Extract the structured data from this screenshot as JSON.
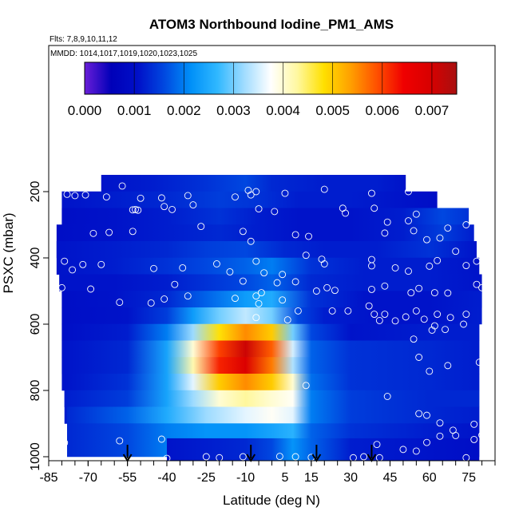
{
  "chart_data": {
    "type": "heatmap",
    "title": "ATOM3 Northbound Iodine_PM1_AMS",
    "flights_note": "Flts: 7,8,9,10,11,12",
    "mmdd_note": "MMDD: 1014,1017,1019,1020,1023,1025",
    "xlabel": "Latitude (deg N)",
    "ylabel": "PSXC (mbar)",
    "xlim": [
      -85,
      85
    ],
    "ylim": [
      1000,
      100
    ],
    "x_ticks": [
      -85,
      -70,
      -55,
      -40,
      -25,
      -10,
      5,
      15,
      30,
      45,
      60,
      75
    ],
    "y_ticks": [
      200,
      400,
      600,
      800,
      1000
    ],
    "colorbar": {
      "min": 0.0,
      "max": 0.0075,
      "ticks": [
        "0.000",
        "0.001",
        "0.002",
        "0.003",
        "0.004",
        "0.005",
        "0.006",
        "0.007"
      ],
      "tick_values": [
        0.0,
        0.001,
        0.002,
        0.003,
        0.004,
        0.005,
        0.006,
        0.007
      ],
      "colors": [
        "#6a1ed8",
        "#0000b8",
        "#0010c8",
        "#0048e0",
        "#0090f8",
        "#30b8ff",
        "#a0dcff",
        "#ffffff",
        "#fff8a0",
        "#ffe000",
        "#ffa000",
        "#ff5000",
        "#f00000",
        "#d80000",
        "#a81010"
      ]
    },
    "flight_markers_lat": [
      -55,
      -8,
      17,
      38
    ],
    "layers": [
      {
        "p": 200,
        "lat_min": -65,
        "lat_max": 51,
        "lat": [
          -65,
          -45,
          -25,
          -10,
          0,
          20,
          40,
          51
        ],
        "v": [
          0.0011,
          0.0012,
          0.0014,
          0.0016,
          0.0013,
          0.0012,
          0.0012,
          0.0011
        ]
      },
      {
        "p": 250,
        "lat_min": -80,
        "lat_max": 63,
        "lat": [
          -80,
          -60,
          -40,
          -20,
          -5,
          10,
          30,
          50,
          63
        ],
        "v": [
          0.0011,
          0.0012,
          0.0013,
          0.0015,
          0.0014,
          0.0012,
          0.0012,
          0.0011,
          0.001
        ]
      },
      {
        "p": 300,
        "lat_min": -80,
        "lat_max": 75,
        "lat": [
          -80,
          -60,
          -40,
          -20,
          -5,
          10,
          30,
          50,
          65,
          75
        ],
        "v": [
          0.001,
          0.0011,
          0.0012,
          0.0014,
          0.0012,
          0.0011,
          0.0011,
          0.0012,
          0.0016,
          0.0014
        ]
      },
      {
        "p": 350,
        "lat_min": -82,
        "lat_max": 77,
        "lat": [
          -82,
          -60,
          -40,
          -20,
          -5,
          10,
          30,
          50,
          65,
          77
        ],
        "v": [
          0.001,
          0.0011,
          0.0012,
          0.0013,
          0.0012,
          0.0011,
          0.0011,
          0.0012,
          0.0015,
          0.0012
        ]
      },
      {
        "p": 400,
        "lat_min": -82,
        "lat_max": 78,
        "lat": [
          -82,
          -60,
          -40,
          -25,
          -10,
          5,
          20,
          40,
          60,
          78
        ],
        "v": [
          0.0011,
          0.0012,
          0.0013,
          0.0015,
          0.0016,
          0.0013,
          0.0012,
          0.0012,
          0.0014,
          0.0011
        ]
      },
      {
        "p": 450,
        "lat_min": -81,
        "lat_max": 79,
        "lat": [
          -81,
          -60,
          -40,
          -25,
          -10,
          0,
          15,
          35,
          60,
          79
        ],
        "v": [
          0.0011,
          0.0012,
          0.0014,
          0.0016,
          0.0018,
          0.002,
          0.0014,
          0.0012,
          0.0012,
          0.0011
        ]
      },
      {
        "p": 500,
        "lat_min": -80,
        "lat_max": 80,
        "lat": [
          -80,
          -60,
          -40,
          -25,
          -10,
          0,
          15,
          35,
          60,
          80
        ],
        "v": [
          0.0011,
          0.0011,
          0.0012,
          0.0014,
          0.0016,
          0.0018,
          0.0013,
          0.0012,
          0.0012,
          0.0011
        ]
      },
      {
        "p": 550,
        "lat_min": -80,
        "lat_max": 80,
        "lat": [
          -80,
          -60,
          -40,
          -25,
          -10,
          0,
          15,
          35,
          60,
          80
        ],
        "v": [
          0.001,
          0.0011,
          0.0013,
          0.0018,
          0.0023,
          0.0025,
          0.0014,
          0.0011,
          0.0011,
          0.0012
        ]
      },
      {
        "p": 600,
        "lat_min": -80,
        "lat_max": 79,
        "lat": [
          -80,
          -55,
          -40,
          -30,
          -20,
          -10,
          0,
          10,
          20,
          40,
          60,
          79
        ],
        "v": [
          0.001,
          0.0011,
          0.0015,
          0.0023,
          0.003,
          0.0034,
          0.003,
          0.0016,
          0.0012,
          0.0011,
          0.0011,
          0.0012
        ]
      },
      {
        "p": 650,
        "lat_min": -80,
        "lat_max": 79,
        "lat": [
          -80,
          -55,
          -40,
          -30,
          -20,
          -10,
          0,
          8,
          15,
          30,
          60,
          79
        ],
        "v": [
          0.001,
          0.0012,
          0.002,
          0.0032,
          0.0048,
          0.0055,
          0.005,
          0.003,
          0.0016,
          0.0011,
          0.0012,
          0.0012
        ]
      },
      {
        "p": 700,
        "lat_min": -80,
        "lat_max": 79,
        "lat": [
          -80,
          -55,
          -40,
          -30,
          -20,
          -10,
          0,
          8,
          15,
          30,
          60,
          79
        ],
        "v": [
          0.0011,
          0.0013,
          0.0024,
          0.004,
          0.006,
          0.0071,
          0.0058,
          0.0035,
          0.0018,
          0.0014,
          0.0013,
          0.0012
        ]
      },
      {
        "p": 750,
        "lat_min": -80,
        "lat_max": 79,
        "lat": [
          -80,
          -55,
          -40,
          -30,
          -20,
          -10,
          0,
          8,
          15,
          30,
          60,
          79
        ],
        "v": [
          0.0011,
          0.0013,
          0.0024,
          0.0042,
          0.0062,
          0.0069,
          0.0056,
          0.0033,
          0.0018,
          0.0014,
          0.0013,
          0.0012
        ]
      },
      {
        "p": 800,
        "lat_min": -79,
        "lat_max": 79,
        "lat": [
          -79,
          -55,
          -40,
          -30,
          -20,
          -10,
          0,
          8,
          15,
          30,
          60,
          79
        ],
        "v": [
          0.0011,
          0.0014,
          0.0024,
          0.0036,
          0.005,
          0.0055,
          0.005,
          0.004,
          0.0019,
          0.0014,
          0.0013,
          0.0012
        ]
      },
      {
        "p": 850,
        "lat_min": -79,
        "lat_max": 79,
        "lat": [
          -79,
          -55,
          -40,
          -30,
          -20,
          -10,
          0,
          8,
          15,
          30,
          60,
          79
        ],
        "v": [
          0.0012,
          0.0015,
          0.0024,
          0.0032,
          0.004,
          0.0043,
          0.004,
          0.0038,
          0.002,
          0.0015,
          0.0013,
          0.0013
        ]
      },
      {
        "p": 900,
        "lat_min": -78,
        "lat_max": 79,
        "lat": [
          -78,
          -55,
          -40,
          -25,
          -10,
          0,
          8,
          15,
          30,
          60,
          79
        ],
        "v": [
          0.0013,
          0.0018,
          0.0025,
          0.0032,
          0.0036,
          0.0038,
          0.0036,
          0.002,
          0.0015,
          0.0013,
          0.0012
        ]
      },
      {
        "p": 950,
        "lat_min": -78,
        "lat_max": 79,
        "lat": [
          -78,
          -55,
          -40,
          -25,
          -10,
          0,
          8,
          15,
          30,
          60,
          79
        ],
        "v": [
          0.0013,
          0.0016,
          0.002,
          0.0022,
          0.0022,
          0.0024,
          0.0026,
          0.0018,
          0.0014,
          0.0012,
          0.0011
        ]
      },
      {
        "p": 995,
        "lat_min": -40,
        "lat_max": 79,
        "lat": [
          -40,
          -25,
          -10,
          0,
          8,
          15,
          30,
          60,
          79
        ],
        "v": [
          0.0011,
          0.0012,
          0.0013,
          0.0016,
          0.0022,
          0.0018,
          0.0012,
          0.0011,
          0.001
        ]
      }
    ],
    "observation_points": [
      [
        -57,
        183
      ],
      [
        -78,
        208
      ],
      [
        -71,
        210
      ],
      [
        -75,
        212
      ],
      [
        -63,
        216
      ],
      [
        -50,
        220
      ],
      [
        -42,
        219
      ],
      [
        -32,
        212
      ],
      [
        -14,
        216
      ],
      [
        -8,
        210
      ],
      [
        -6,
        200
      ],
      [
        -9,
        196
      ],
      [
        5,
        205
      ],
      [
        20,
        193
      ],
      [
        38,
        205
      ],
      [
        52,
        200
      ],
      [
        -53,
        255
      ],
      [
        -52,
        254
      ],
      [
        -51,
        256
      ],
      [
        -41,
        245
      ],
      [
        -30,
        240
      ],
      [
        -38,
        254
      ],
      [
        -5,
        252
      ],
      [
        1,
        260
      ],
      [
        27,
        250
      ],
      [
        28,
        265
      ],
      [
        39,
        250
      ],
      [
        44,
        292
      ],
      [
        55,
        268
      ],
      [
        52,
        288
      ],
      [
        77,
        275
      ],
      [
        -86,
        323
      ],
      [
        -62,
        323
      ],
      [
        -53,
        320
      ],
      [
        -68,
        326
      ],
      [
        -27,
        305
      ],
      [
        -11,
        320
      ],
      [
        -8,
        350
      ],
      [
        9,
        330
      ],
      [
        14,
        335
      ],
      [
        43,
        325
      ],
      [
        54,
        318
      ],
      [
        59,
        345
      ],
      [
        64,
        340
      ],
      [
        67,
        310
      ],
      [
        70,
        380
      ],
      [
        74,
        300
      ],
      [
        -79,
        410
      ],
      [
        -72,
        420
      ],
      [
        -76,
        436
      ],
      [
        -65,
        420
      ],
      [
        -45,
        432
      ],
      [
        -34,
        430
      ],
      [
        -21,
        418
      ],
      [
        -16,
        442
      ],
      [
        -6,
        410
      ],
      [
        -3,
        445
      ],
      [
        4,
        450
      ],
      [
        13,
        392
      ],
      [
        19,
        404
      ],
      [
        20,
        418
      ],
      [
        38,
        405
      ],
      [
        38,
        424
      ],
      [
        47,
        430
      ],
      [
        52,
        440
      ],
      [
        60,
        425
      ],
      [
        63,
        408
      ],
      [
        74,
        423
      ],
      [
        78,
        410
      ],
      [
        -80,
        490
      ],
      [
        -69,
        494
      ],
      [
        -37,
        480
      ],
      [
        -11,
        470
      ],
      [
        -4,
        505
      ],
      [
        2,
        475
      ],
      [
        9,
        472
      ],
      [
        17,
        500
      ],
      [
        21,
        490
      ],
      [
        24,
        498
      ],
      [
        38,
        495
      ],
      [
        43,
        485
      ],
      [
        53,
        505
      ],
      [
        56,
        492
      ],
      [
        62,
        505
      ],
      [
        67,
        506
      ],
      [
        78,
        480
      ],
      [
        80,
        490
      ],
      [
        -58,
        534
      ],
      [
        -46,
        536
      ],
      [
        -41,
        524
      ],
      [
        -32,
        515
      ],
      [
        -14,
        522
      ],
      [
        -6,
        515
      ],
      [
        -5,
        538
      ],
      [
        4,
        527
      ],
      [
        10,
        560
      ],
      [
        23,
        560
      ],
      [
        29,
        560
      ],
      [
        37,
        545
      ],
      [
        43,
        570
      ],
      [
        55,
        560
      ],
      [
        63,
        570
      ],
      [
        68,
        580
      ],
      [
        74,
        570
      ],
      [
        -6,
        580
      ],
      [
        6,
        587
      ],
      [
        39,
        570
      ],
      [
        41,
        589
      ],
      [
        47,
        590
      ],
      [
        51,
        578
      ],
      [
        58,
        585
      ],
      [
        62,
        605
      ],
      [
        66,
        616
      ],
      [
        73,
        600
      ],
      [
        61,
        618
      ],
      [
        54,
        645
      ],
      [
        56,
        700
      ],
      [
        60,
        742
      ],
      [
        67,
        725
      ],
      [
        79,
        715
      ],
      [
        13,
        785
      ],
      [
        44,
        818
      ],
      [
        56,
        870
      ],
      [
        59,
        875
      ],
      [
        64,
        898
      ],
      [
        69,
        920
      ],
      [
        77,
        902
      ],
      [
        80,
        935
      ],
      [
        -79,
        958
      ],
      [
        -58,
        952
      ],
      [
        -42,
        947
      ],
      [
        40,
        963
      ],
      [
        50,
        978
      ],
      [
        55,
        983
      ],
      [
        59,
        957
      ],
      [
        64,
        938
      ],
      [
        70,
        936
      ],
      [
        77,
        948
      ],
      [
        74,
        1003
      ],
      [
        -25,
        1000
      ],
      [
        -40,
        1005
      ],
      [
        -20,
        1003
      ],
      [
        -11,
        1000
      ],
      [
        3,
        999
      ],
      [
        9,
        1000
      ],
      [
        15,
        1002
      ],
      [
        31,
        1003
      ],
      [
        35,
        1000
      ],
      [
        41,
        1003
      ]
    ]
  }
}
